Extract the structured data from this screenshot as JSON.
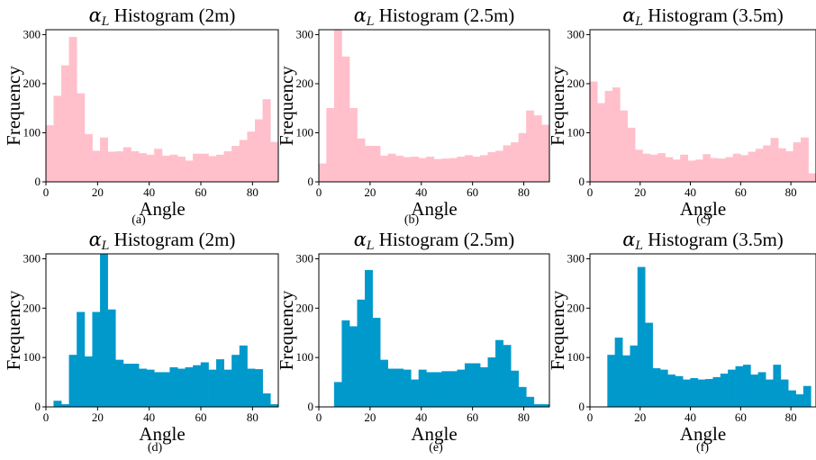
{
  "figure": {
    "captions": [
      "(a)",
      "(b)",
      "(c)",
      "(d)",
      "(e)",
      "(f)"
    ]
  },
  "chart_data": [
    {
      "type": "bar",
      "title": "αL Histogram (2m)",
      "title_parts": {
        "symbol": "α",
        "subscript": "L",
        "text": "Histogram (2m)"
      },
      "xlabel": "Angle",
      "ylabel": "Frequency",
      "xlim": [
        0,
        90
      ],
      "ylim": [
        0,
        310
      ],
      "xticks": [
        "0",
        "20",
        "40",
        "60",
        "80"
      ],
      "yticks": [
        "0",
        "100",
        "200",
        "300"
      ],
      "color": "#ffc0cb",
      "bin_width": 3,
      "bins_start": [
        0,
        3,
        6,
        9,
        12,
        15,
        18,
        21,
        24,
        27,
        30,
        33,
        36,
        39,
        42,
        45,
        48,
        51,
        54,
        57,
        60,
        63,
        66,
        69,
        72,
        75,
        78,
        81,
        84,
        87
      ],
      "values": [
        115,
        175,
        237,
        295,
        180,
        97,
        63,
        90,
        61,
        62,
        70,
        62,
        58,
        55,
        67,
        53,
        55,
        51,
        43,
        57,
        57,
        52,
        55,
        62,
        73,
        85,
        102,
        127,
        168,
        81
      ]
    },
    {
      "type": "bar",
      "title": "αL Histogram (2.5m)",
      "title_parts": {
        "symbol": "α",
        "subscript": "L",
        "text": "Histogram (2.5m)"
      },
      "xlabel": "Angle",
      "ylabel": "Frequency",
      "xlim": [
        0,
        90
      ],
      "ylim": [
        0,
        310
      ],
      "xticks": [
        "0",
        "20",
        "40",
        "60",
        "80"
      ],
      "yticks": [
        "0",
        "100",
        "200",
        "300"
      ],
      "color": "#ffc0cb",
      "bin_width": 3,
      "bins_start": [
        0,
        3,
        6,
        9,
        12,
        15,
        18,
        21,
        24,
        27,
        30,
        33,
        36,
        39,
        42,
        45,
        48,
        51,
        54,
        57,
        60,
        63,
        66,
        69,
        72,
        75,
        78,
        81,
        84,
        87
      ],
      "values": [
        37,
        150,
        310,
        255,
        150,
        88,
        73,
        73,
        53,
        57,
        53,
        50,
        51,
        48,
        51,
        46,
        47,
        48,
        51,
        54,
        51,
        54,
        60,
        63,
        74,
        80,
        99,
        145,
        135,
        116
      ]
    },
    {
      "type": "bar",
      "title": "αL Histogram (3.5m)",
      "title_parts": {
        "symbol": "α",
        "subscript": "L",
        "text": "Histogram (3.5m)"
      },
      "xlabel": "Angle",
      "ylabel": "Frequency",
      "xlim": [
        0,
        90
      ],
      "ylim": [
        0,
        310
      ],
      "xticks": [
        "0",
        "20",
        "40",
        "60",
        "80"
      ],
      "yticks": [
        "0",
        "100",
        "200",
        "300"
      ],
      "color": "#ffc0cb",
      "bin_width": 3,
      "bins_start": [
        0,
        3,
        6,
        9,
        12,
        15,
        18,
        21,
        24,
        27,
        30,
        33,
        36,
        39,
        42,
        45,
        48,
        51,
        54,
        57,
        60,
        63,
        66,
        69,
        72,
        75,
        78,
        81,
        84,
        87
      ],
      "values": [
        204,
        160,
        185,
        192,
        145,
        110,
        65,
        57,
        55,
        58,
        50,
        45,
        55,
        43,
        45,
        56,
        48,
        47,
        50,
        57,
        54,
        61,
        67,
        74,
        89,
        68,
        62,
        80,
        90,
        17
      ]
    },
    {
      "type": "bar",
      "title": "αL Histogram (2m)",
      "title_parts": {
        "symbol": "α",
        "subscript": "L",
        "text": "Histogram (2m)"
      },
      "xlabel": "Angle",
      "ylabel": "Frequency",
      "xlim": [
        0,
        90
      ],
      "ylim": [
        0,
        310
      ],
      "xticks": [
        "0",
        "20",
        "40",
        "60",
        "80"
      ],
      "yticks": [
        "0",
        "100",
        "200",
        "300"
      ],
      "color": "#0099cc",
      "bin_width": 3,
      "bins_start": [
        0,
        3,
        6,
        9,
        12,
        15,
        18,
        21,
        24,
        27,
        30,
        33,
        36,
        39,
        42,
        45,
        48,
        51,
        54,
        57,
        60,
        63,
        66,
        69,
        72,
        75,
        78,
        81,
        84,
        87
      ],
      "values": [
        0,
        12,
        5,
        105,
        192,
        102,
        192,
        310,
        197,
        95,
        87,
        87,
        77,
        75,
        70,
        70,
        80,
        77,
        80,
        84,
        90,
        75,
        96,
        75,
        105,
        124,
        77,
        76,
        27,
        5
      ]
    },
    {
      "type": "bar",
      "title": "αL Histogram (2.5m)",
      "title_parts": {
        "symbol": "α",
        "subscript": "L",
        "text": "Histogram (2.5m)"
      },
      "xlabel": "Angle",
      "ylabel": "Frequency",
      "xlim": [
        0,
        90
      ],
      "ylim": [
        0,
        310
      ],
      "xticks": [
        "0",
        "20",
        "40",
        "60",
        "80"
      ],
      "yticks": [
        "0",
        "100",
        "200",
        "300"
      ],
      "color": "#0099cc",
      "bin_width": 3,
      "bins_start": [
        6,
        9,
        12,
        15,
        18,
        21,
        24,
        27,
        30,
        33,
        36,
        39,
        42,
        45,
        48,
        51,
        54,
        57,
        60,
        63,
        66,
        69,
        72,
        75,
        78,
        81,
        84,
        87
      ],
      "values": [
        50,
        175,
        163,
        217,
        277,
        180,
        95,
        77,
        77,
        75,
        55,
        75,
        70,
        70,
        72,
        72,
        75,
        88,
        88,
        80,
        100,
        135,
        125,
        73,
        40,
        20,
        5,
        5
      ]
    },
    {
      "type": "bar",
      "title": "αL Histogram (3.5m)",
      "title_parts": {
        "symbol": "α",
        "subscript": "L",
        "text": "Histogram (3.5m)"
      },
      "xlabel": "Angle",
      "ylabel": "Frequency",
      "xlim": [
        0,
        90
      ],
      "ylim": [
        0,
        310
      ],
      "xticks": [
        "0",
        "20",
        "40",
        "60",
        "80"
      ],
      "yticks": [
        "0",
        "100",
        "200",
        "300"
      ],
      "color": "#0099cc",
      "bin_width": 3,
      "bins_start": [
        7,
        10,
        13,
        16,
        19,
        22,
        25,
        28,
        31,
        34,
        37,
        40,
        43,
        46,
        49,
        52,
        55,
        58,
        61,
        64,
        67,
        70,
        73,
        76,
        79,
        82,
        85
      ],
      "values": [
        105,
        140,
        104,
        124,
        283,
        170,
        78,
        75,
        65,
        62,
        55,
        58,
        55,
        56,
        60,
        67,
        75,
        82,
        85,
        65,
        70,
        55,
        85,
        55,
        33,
        25,
        42
      ]
    }
  ]
}
